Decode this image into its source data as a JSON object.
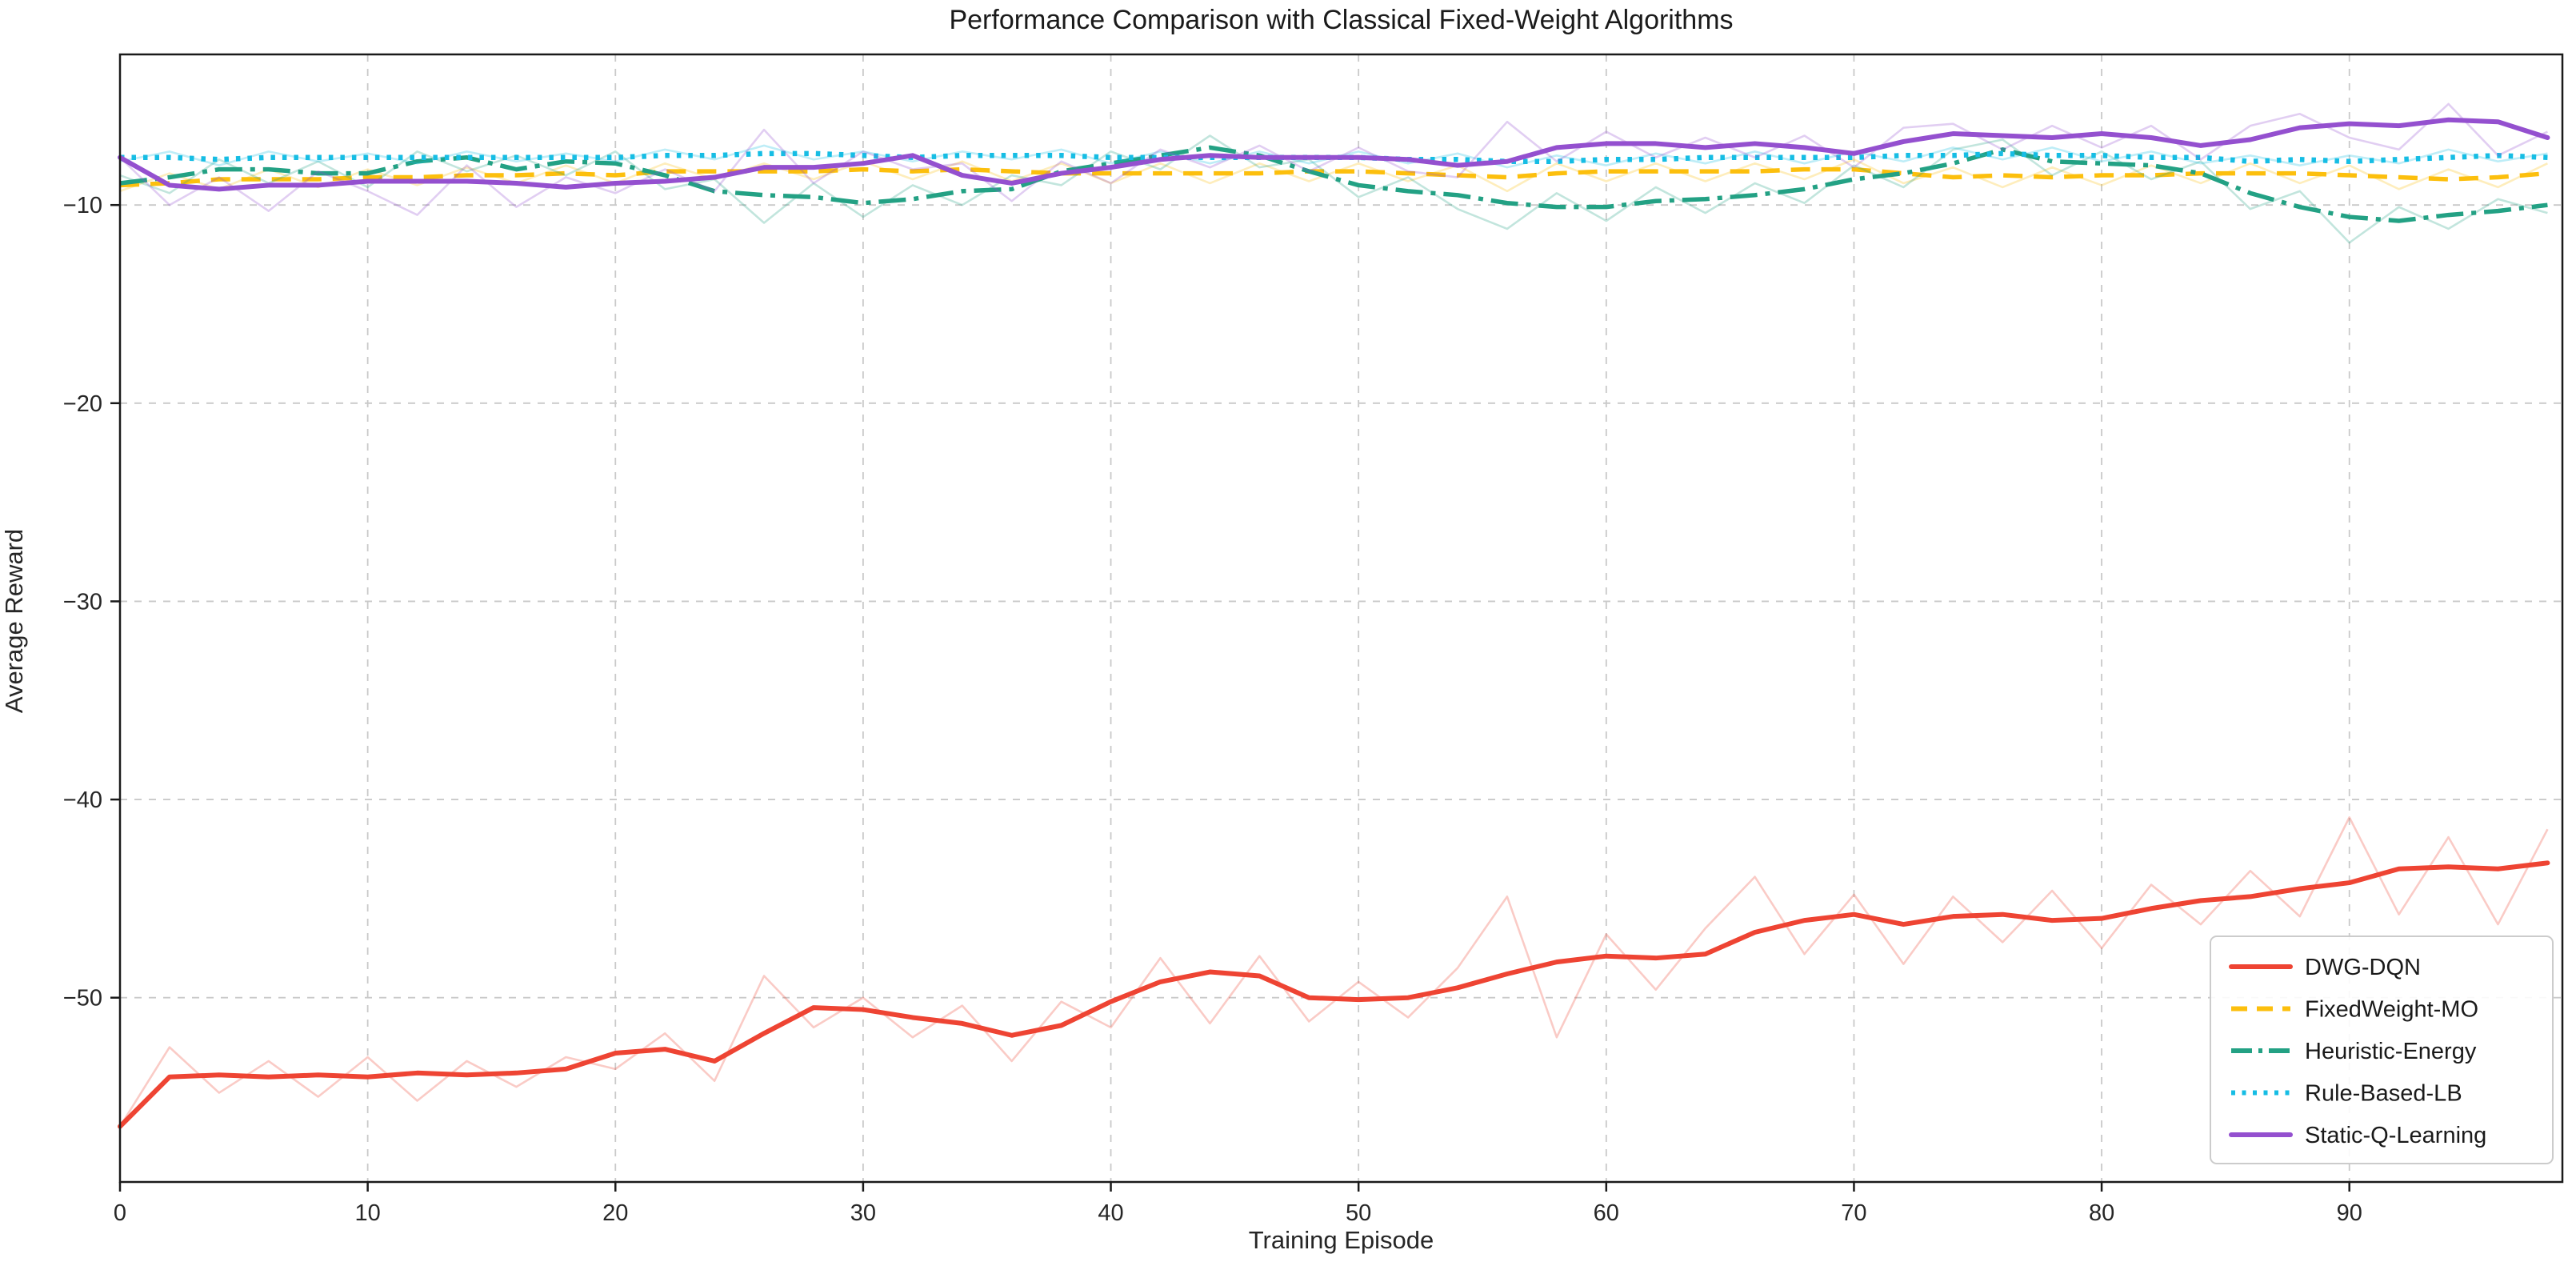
{
  "title": "Performance Comparison with Classical Fixed-Weight Algorithms",
  "axes": {
    "xlabel": "Training Episode",
    "ylabel": "Average Reward",
    "x_tick_labels": [
      "0",
      "10",
      "20",
      "30",
      "40",
      "50",
      "60",
      "70",
      "80",
      "90"
    ],
    "y_tick_labels": [
      "−10",
      "−20",
      "−30",
      "−40",
      "−50"
    ]
  },
  "legend": {
    "position": "lower right",
    "entries": [
      "DWG-DQN",
      "FixedWeight-MO",
      "Heuristic-Energy",
      "Rule-Based-LB",
      "Static-Q-Learning"
    ]
  },
  "colors": {
    "dwg_dqn": "#ee4433",
    "fixedweight_mo": "#fcbf0d",
    "heuristic_energy": "#23a184",
    "rule_based_lb": "#16bde4",
    "static_q_learning": "#9450cf",
    "grid": "#c9c9c9",
    "spine": "#1a1a1a",
    "text": "#262626"
  },
  "chart_data": {
    "type": "line",
    "title": "Performance Comparison with Classical Fixed-Weight Algorithms",
    "xlabel": "Training Episode",
    "ylabel": "Average Reward",
    "xlim": [
      0,
      98.6
    ],
    "ylim": [
      -59.3,
      -2.4
    ],
    "x_ticks": [
      0,
      10,
      20,
      30,
      40,
      50,
      60,
      70,
      80,
      90
    ],
    "y_ticks": [
      -10,
      -20,
      -30,
      -40,
      -50
    ],
    "grid": true,
    "legend_position": "lower right",
    "x": [
      0,
      2,
      4,
      6,
      8,
      10,
      12,
      14,
      16,
      18,
      20,
      22,
      24,
      26,
      28,
      30,
      32,
      34,
      36,
      38,
      40,
      42,
      44,
      46,
      48,
      50,
      52,
      54,
      56,
      58,
      60,
      62,
      64,
      66,
      68,
      70,
      72,
      74,
      76,
      78,
      80,
      82,
      84,
      86,
      88,
      90,
      92,
      94,
      96,
      98
    ],
    "series": [
      {
        "name": "DWG-DQN",
        "color": "#ee4433",
        "style": "solid",
        "width": 6,
        "smooth": [
          -56.5,
          -54.0,
          -53.9,
          -54.0,
          -53.9,
          -54.0,
          -53.8,
          -53.9,
          -53.8,
          -53.6,
          -52.8,
          -52.6,
          -53.2,
          -51.8,
          -50.5,
          -50.6,
          -51.0,
          -51.3,
          -51.9,
          -51.4,
          -50.2,
          -49.2,
          -48.7,
          -48.9,
          -50.0,
          -50.1,
          -50.0,
          -49.5,
          -48.8,
          -48.2,
          -47.9,
          -48.0,
          -47.8,
          -46.7,
          -46.1,
          -45.8,
          -46.3,
          -45.9,
          -45.8,
          -46.1,
          -46.0,
          -45.5,
          -45.1,
          -44.9,
          -44.5,
          -44.2,
          -43.5,
          -43.4,
          -43.5,
          -43.2
        ],
        "raw": [
          -56.5,
          -52.5,
          -54.8,
          -53.2,
          -55.0,
          -53.0,
          -55.2,
          -53.2,
          -54.5,
          -53.0,
          -53.6,
          -51.8,
          -54.2,
          -48.9,
          -51.5,
          -50.0,
          -52.0,
          -50.4,
          -53.2,
          -50.2,
          -51.5,
          -48.0,
          -51.3,
          -47.9,
          -51.2,
          -49.2,
          -51.0,
          -48.5,
          -44.9,
          -52.0,
          -46.8,
          -49.6,
          -46.5,
          -43.9,
          -47.8,
          -44.8,
          -48.3,
          -44.9,
          -47.2,
          -44.6,
          -47.5,
          -44.3,
          -46.3,
          -43.6,
          -45.9,
          -40.9,
          -45.8,
          -41.9,
          -46.3,
          -41.5
        ]
      },
      {
        "name": "FixedWeight-MO",
        "color": "#fcbf0d",
        "style": "dashed",
        "width": 5.5,
        "smooth": [
          -9.0,
          -8.9,
          -8.7,
          -8.7,
          -8.7,
          -8.6,
          -8.6,
          -8.5,
          -8.5,
          -8.4,
          -8.5,
          -8.3,
          -8.3,
          -8.3,
          -8.3,
          -8.2,
          -8.3,
          -8.2,
          -8.3,
          -8.4,
          -8.4,
          -8.4,
          -8.4,
          -8.4,
          -8.3,
          -8.3,
          -8.4,
          -8.5,
          -8.6,
          -8.4,
          -8.3,
          -8.3,
          -8.3,
          -8.3,
          -8.2,
          -8.2,
          -8.4,
          -8.6,
          -8.5,
          -8.6,
          -8.5,
          -8.5,
          -8.4,
          -8.4,
          -8.4,
          -8.5,
          -8.6,
          -8.7,
          -8.6,
          -8.4
        ],
        "raw": [
          -9.3,
          -8.4,
          -9.2,
          -8.2,
          -9.1,
          -8.2,
          -9.0,
          -8.1,
          -8.9,
          -8.0,
          -8.9,
          -7.9,
          -8.7,
          -7.9,
          -8.7,
          -7.8,
          -8.7,
          -7.8,
          -8.8,
          -7.9,
          -8.9,
          -7.9,
          -8.9,
          -7.9,
          -8.8,
          -7.9,
          -8.8,
          -8.0,
          -9.3,
          -7.9,
          -8.8,
          -7.9,
          -8.8,
          -7.9,
          -8.7,
          -7.7,
          -8.9,
          -8.1,
          -9.1,
          -8.1,
          -9.0,
          -8.0,
          -8.9,
          -7.9,
          -8.9,
          -8.0,
          -9.2,
          -8.2,
          -9.1,
          -7.9
        ]
      },
      {
        "name": "Heuristic-Energy",
        "color": "#23a184",
        "style": "dashdot",
        "width": 5.5,
        "smooth": [
          -8.9,
          -8.6,
          -8.2,
          -8.2,
          -8.4,
          -8.4,
          -7.8,
          -7.6,
          -8.2,
          -7.8,
          -7.9,
          -8.5,
          -9.3,
          -9.5,
          -9.6,
          -9.9,
          -9.7,
          -9.3,
          -9.2,
          -8.3,
          -7.9,
          -7.5,
          -7.1,
          -7.5,
          -8.3,
          -9.0,
          -9.3,
          -9.5,
          -9.9,
          -10.1,
          -10.1,
          -9.8,
          -9.7,
          -9.5,
          -9.2,
          -8.7,
          -8.4,
          -7.9,
          -7.2,
          -7.8,
          -7.9,
          -8.0,
          -8.4,
          -9.4,
          -10.1,
          -10.6,
          -10.8,
          -10.5,
          -10.3,
          -10.0
        ],
        "raw": [
          -8.5,
          -9.4,
          -7.7,
          -8.9,
          -7.8,
          -9.1,
          -7.3,
          -8.3,
          -7.5,
          -8.5,
          -7.3,
          -9.2,
          -8.7,
          -10.9,
          -8.9,
          -10.6,
          -9.0,
          -10.0,
          -8.5,
          -9.0,
          -7.3,
          -8.2,
          -6.5,
          -8.1,
          -7.7,
          -9.6,
          -8.6,
          -10.2,
          -11.2,
          -9.4,
          -10.8,
          -9.1,
          -10.4,
          -8.9,
          -9.9,
          -8.0,
          -9.1,
          -7.2,
          -6.7,
          -8.5,
          -7.3,
          -8.7,
          -7.8,
          -10.2,
          -9.3,
          -11.9,
          -10.1,
          -11.2,
          -9.7,
          -10.4
        ]
      },
      {
        "name": "Rule-Based-LB",
        "color": "#16bde4",
        "style": "dotted",
        "width": 6.5,
        "smooth": [
          -7.6,
          -7.6,
          -7.7,
          -7.6,
          -7.6,
          -7.6,
          -7.6,
          -7.6,
          -7.6,
          -7.6,
          -7.6,
          -7.5,
          -7.5,
          -7.4,
          -7.4,
          -7.5,
          -7.6,
          -7.5,
          -7.5,
          -7.5,
          -7.6,
          -7.6,
          -7.6,
          -7.6,
          -7.6,
          -7.6,
          -7.7,
          -7.7,
          -7.8,
          -7.8,
          -7.7,
          -7.7,
          -7.6,
          -7.6,
          -7.6,
          -7.6,
          -7.5,
          -7.5,
          -7.4,
          -7.5,
          -7.5,
          -7.6,
          -7.6,
          -7.8,
          -7.7,
          -7.8,
          -7.7,
          -7.6,
          -7.5,
          -7.6
        ],
        "raw": [
          -7.8,
          -7.3,
          -8.0,
          -7.3,
          -7.8,
          -7.4,
          -7.9,
          -7.3,
          -7.8,
          -7.4,
          -7.8,
          -7.2,
          -7.7,
          -7.0,
          -7.7,
          -7.3,
          -7.8,
          -7.3,
          -7.7,
          -7.2,
          -7.9,
          -7.3,
          -7.9,
          -7.3,
          -7.9,
          -7.3,
          -7.9,
          -7.4,
          -8.1,
          -7.5,
          -8.0,
          -7.4,
          -7.9,
          -7.3,
          -7.9,
          -7.3,
          -7.8,
          -7.1,
          -7.7,
          -7.1,
          -7.8,
          -7.3,
          -7.9,
          -7.5,
          -8.0,
          -7.5,
          -7.9,
          -7.2,
          -7.8,
          -7.4
        ]
      },
      {
        "name": "Static-Q-Learning",
        "color": "#9450cf",
        "style": "solid",
        "width": 6,
        "smooth": [
          -7.6,
          -9.0,
          -9.2,
          -9.0,
          -9.0,
          -8.8,
          -8.8,
          -8.8,
          -8.9,
          -9.1,
          -8.9,
          -8.8,
          -8.6,
          -8.1,
          -8.1,
          -7.9,
          -7.5,
          -8.5,
          -8.9,
          -8.4,
          -8.1,
          -7.7,
          -7.5,
          -7.6,
          -7.6,
          -7.6,
          -7.7,
          -8.0,
          -7.8,
          -7.1,
          -6.9,
          -6.9,
          -7.1,
          -6.9,
          -7.1,
          -7.4,
          -6.8,
          -6.4,
          -6.5,
          -6.6,
          -6.4,
          -6.6,
          -7.0,
          -6.7,
          -6.1,
          -5.9,
          -6.0,
          -5.7,
          -5.8,
          -6.6
        ],
        "raw": [
          -7.6,
          -10.0,
          -8.6,
          -10.3,
          -8.3,
          -9.3,
          -10.5,
          -8.0,
          -10.1,
          -8.6,
          -9.4,
          -8.2,
          -9.3,
          -6.2,
          -8.9,
          -7.3,
          -8.2,
          -7.9,
          -9.8,
          -7.8,
          -8.9,
          -7.2,
          -8.1,
          -7.0,
          -8.3,
          -7.1,
          -8.3,
          -8.6,
          -5.8,
          -7.8,
          -6.3,
          -7.6,
          -6.6,
          -7.6,
          -6.5,
          -8.1,
          -6.1,
          -5.9,
          -7.2,
          -6.0,
          -7.1,
          -6.0,
          -7.7,
          -6.0,
          -5.4,
          -6.6,
          -7.2,
          -4.9,
          -7.5,
          -6.3
        ]
      }
    ]
  }
}
